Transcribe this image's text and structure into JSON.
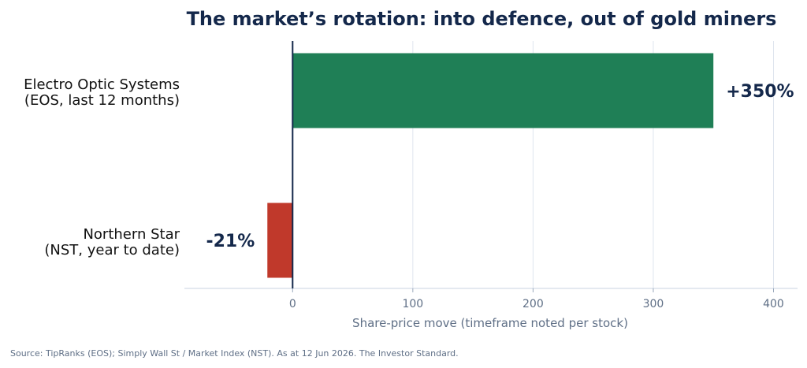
{
  "chart_data": {
    "type": "bar",
    "orientation": "horizontal",
    "title": "The market’s rotation: into defence, out of gold miners",
    "categories": [
      [
        "Electro Optic Systems",
        "(EOS, last 12 months)"
      ],
      [
        "Northern Star",
        "(NST, year to date)"
      ]
    ],
    "values": [
      350,
      -21
    ],
    "value_labels": [
      "+350%",
      "-21%"
    ],
    "bar_colors": [
      "#1f7f56",
      "#c0392b"
    ],
    "xlabel": "Share-price move (timeframe noted per stock)",
    "xticks": [
      0,
      100,
      200,
      300,
      400
    ],
    "xlim": [
      -90,
      420
    ],
    "grid": true,
    "source": "Source: TipRanks (EOS); Simply Wall St / Market Index (NST). As at 12 Jun 2026. The Investor Standard."
  }
}
